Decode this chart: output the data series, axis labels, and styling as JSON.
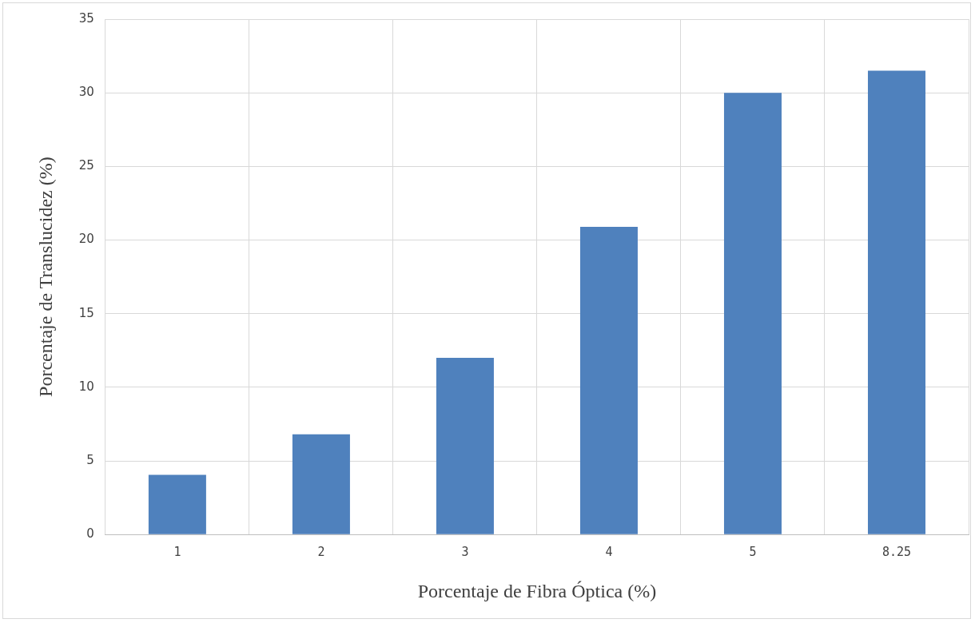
{
  "chart_data": {
    "type": "bar",
    "xlabel": "Porcentaje de Fibra Óptica (%)",
    "ylabel": "Porcentaje de Translucidez (%)",
    "categories": [
      "1",
      "2",
      "3",
      "4",
      "5",
      "8.25"
    ],
    "values": [
      4.05,
      6.8,
      12,
      20.9,
      30,
      31.5
    ],
    "color": "#4f81bd",
    "ylim": [
      0,
      35
    ],
    "yticks": [
      0,
      5,
      10,
      15,
      20,
      25,
      30,
      35
    ],
    "grid": true
  }
}
